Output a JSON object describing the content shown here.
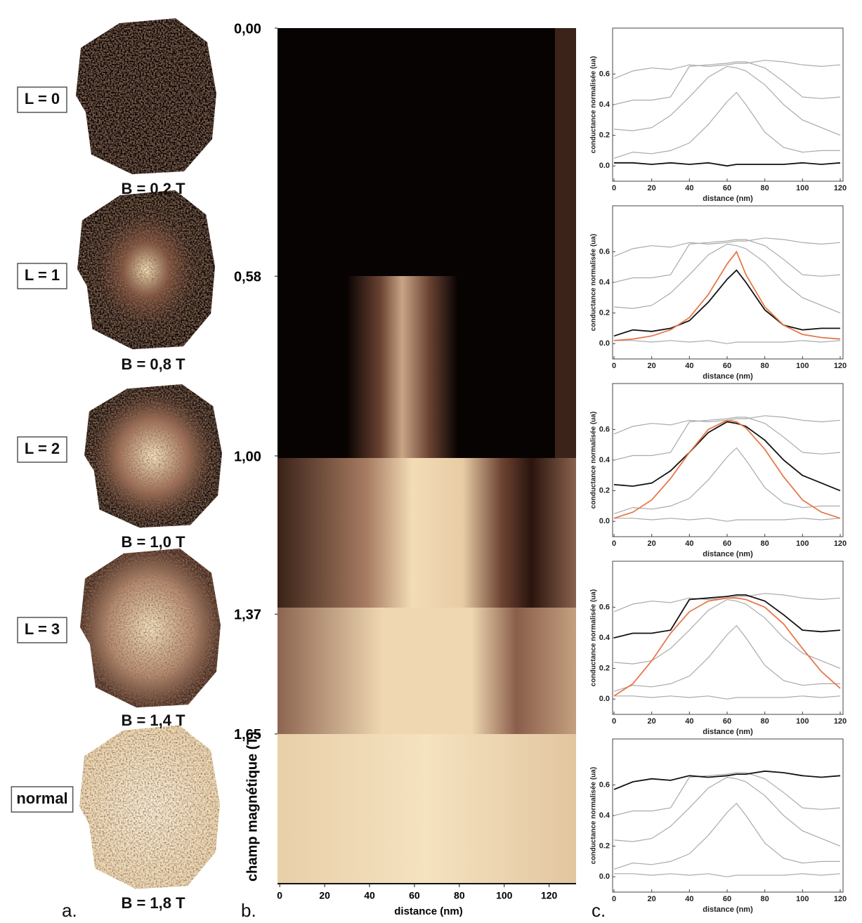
{
  "panel_a": {
    "label": "a.",
    "items": [
      {
        "tag": "L = 0",
        "field": "B = 0,2 T"
      },
      {
        "tag": "L = 1",
        "field": "B = 0,8 T"
      },
      {
        "tag": "L = 2",
        "field": "B = 1,0 T"
      },
      {
        "tag": "L = 3",
        "field": "B = 1,4 T"
      },
      {
        "tag": "normal",
        "field": "B = 1,8 T"
      }
    ]
  },
  "panel_b": {
    "label": "b.",
    "xlabel": "distance (nm)",
    "ylabel": "champ magnétique (T)",
    "xlim": [
      -1,
      132
    ],
    "xticks": [
      0,
      20,
      40,
      60,
      80,
      100,
      120
    ],
    "ylim": [
      0,
      2
    ],
    "yticks": [
      {
        "value": 0,
        "label": "0,00"
      },
      {
        "value": 0.58,
        "label": "0,58"
      },
      {
        "value": 1,
        "label": "1,00"
      },
      {
        "value": 1.37,
        "label": "1,37"
      },
      {
        "value": 1.65,
        "label": "1,65"
      }
    ]
  },
  "panel_c": {
    "label": "c."
  },
  "chart_data": [
    {
      "type": "line",
      "xlabel": "distance (nm)",
      "ylabel": "conductance normalisée (ua)",
      "xlim": [
        0,
        120
      ],
      "xticks": [
        0,
        20,
        40,
        60,
        80,
        100,
        120
      ],
      "ylim": [
        -0.1,
        0.9
      ],
      "yticks": [
        {
          "value": 0,
          "label": "0.0"
        },
        0.2,
        0.4,
        0.6
      ],
      "x": [
        0,
        10,
        20,
        30,
        40,
        50,
        60,
        65,
        70,
        80,
        90,
        100,
        110,
        120
      ],
      "series": [
        {
          "color": "#aaaaaa",
          "values": [
            0.05,
            0.09,
            0.08,
            0.1,
            0.15,
            0.27,
            0.42,
            0.48,
            0.4,
            0.22,
            0.12,
            0.09,
            0.1,
            0.1
          ]
        },
        {
          "color": "#aaaaaa",
          "values": [
            0.24,
            0.23,
            0.25,
            0.33,
            0.45,
            0.58,
            0.65,
            0.64,
            0.62,
            0.53,
            0.4,
            0.3,
            0.25,
            0.2
          ]
        },
        {
          "color": "#aaaaaa",
          "values": [
            0.4,
            0.43,
            0.43,
            0.45,
            0.65,
            0.66,
            0.67,
            0.68,
            0.68,
            0.64,
            0.55,
            0.45,
            0.44,
            0.45
          ]
        },
        {
          "color": "#aaaaaa",
          "values": [
            0.57,
            0.62,
            0.64,
            0.63,
            0.66,
            0.65,
            0.66,
            0.67,
            0.67,
            0.69,
            0.68,
            0.66,
            0.65,
            0.66
          ]
        },
        {
          "color": "#111111",
          "values": [
            0.02,
            0.02,
            0.01,
            0.02,
            0.01,
            0.02,
            0.0,
            0.01,
            0.01,
            0.01,
            0.01,
            0.02,
            0.01,
            0.02
          ]
        }
      ]
    },
    {
      "type": "line",
      "xlabel": "distance (nm)",
      "ylabel": "conductance normalisée (ua)",
      "xlim": [
        0,
        120
      ],
      "xticks": [
        0,
        20,
        40,
        60,
        80,
        100,
        120
      ],
      "ylim": [
        -0.1,
        0.9
      ],
      "yticks": [
        {
          "value": 0,
          "label": "0.0"
        },
        0.2,
        0.4,
        0.6
      ],
      "x": [
        0,
        10,
        20,
        30,
        40,
        50,
        60,
        65,
        70,
        80,
        90,
        100,
        110,
        120
      ],
      "series": [
        {
          "color": "#aaaaaa",
          "values": [
            0.02,
            0.02,
            0.01,
            0.02,
            0.01,
            0.02,
            0.0,
            0.01,
            0.01,
            0.01,
            0.01,
            0.02,
            0.01,
            0.02
          ]
        },
        {
          "color": "#aaaaaa",
          "values": [
            0.24,
            0.23,
            0.25,
            0.33,
            0.45,
            0.58,
            0.65,
            0.64,
            0.62,
            0.53,
            0.4,
            0.3,
            0.25,
            0.2
          ]
        },
        {
          "color": "#aaaaaa",
          "values": [
            0.4,
            0.43,
            0.43,
            0.45,
            0.65,
            0.66,
            0.67,
            0.68,
            0.68,
            0.64,
            0.55,
            0.45,
            0.44,
            0.45
          ]
        },
        {
          "color": "#aaaaaa",
          "values": [
            0.57,
            0.62,
            0.64,
            0.63,
            0.66,
            0.65,
            0.66,
            0.67,
            0.67,
            0.69,
            0.68,
            0.66,
            0.65,
            0.66
          ]
        },
        {
          "color": "#111111",
          "values": [
            0.05,
            0.09,
            0.08,
            0.1,
            0.15,
            0.27,
            0.42,
            0.48,
            0.4,
            0.22,
            0.12,
            0.09,
            0.1,
            0.1
          ]
        },
        {
          "color": "#e8774a",
          "values": [
            0.02,
            0.03,
            0.05,
            0.09,
            0.17,
            0.32,
            0.52,
            0.6,
            0.45,
            0.24,
            0.12,
            0.06,
            0.04,
            0.03
          ]
        }
      ]
    },
    {
      "type": "line",
      "xlabel": "distance (nm)",
      "ylabel": "conductance normalisée (ua)",
      "xlim": [
        0,
        120
      ],
      "xticks": [
        0,
        20,
        40,
        60,
        80,
        100,
        120
      ],
      "ylim": [
        -0.1,
        0.9
      ],
      "yticks": [
        {
          "value": 0,
          "label": "0.0"
        },
        0.2,
        0.4,
        0.6
      ],
      "x": [
        0,
        10,
        20,
        30,
        40,
        50,
        60,
        65,
        70,
        80,
        90,
        100,
        110,
        120
      ],
      "series": [
        {
          "color": "#aaaaaa",
          "values": [
            0.02,
            0.02,
            0.01,
            0.02,
            0.01,
            0.02,
            0.0,
            0.01,
            0.01,
            0.01,
            0.01,
            0.02,
            0.01,
            0.02
          ]
        },
        {
          "color": "#aaaaaa",
          "values": [
            0.05,
            0.09,
            0.08,
            0.1,
            0.15,
            0.27,
            0.42,
            0.48,
            0.4,
            0.22,
            0.12,
            0.09,
            0.1,
            0.1
          ]
        },
        {
          "color": "#aaaaaa",
          "values": [
            0.4,
            0.43,
            0.43,
            0.45,
            0.65,
            0.66,
            0.67,
            0.68,
            0.68,
            0.64,
            0.55,
            0.45,
            0.44,
            0.45
          ]
        },
        {
          "color": "#aaaaaa",
          "values": [
            0.57,
            0.62,
            0.64,
            0.63,
            0.66,
            0.65,
            0.66,
            0.67,
            0.67,
            0.69,
            0.68,
            0.66,
            0.65,
            0.66
          ]
        },
        {
          "color": "#111111",
          "values": [
            0.24,
            0.23,
            0.25,
            0.33,
            0.45,
            0.58,
            0.65,
            0.64,
            0.62,
            0.53,
            0.4,
            0.3,
            0.25,
            0.2
          ]
        },
        {
          "color": "#e8774a",
          "values": [
            0.02,
            0.06,
            0.14,
            0.28,
            0.45,
            0.6,
            0.66,
            0.65,
            0.61,
            0.47,
            0.29,
            0.14,
            0.06,
            0.02
          ]
        }
      ]
    },
    {
      "type": "line",
      "xlabel": "distance (nm)",
      "ylabel": "conductance normalisée (ua)",
      "xlim": [
        0,
        120
      ],
      "xticks": [
        0,
        20,
        40,
        60,
        80,
        100,
        120
      ],
      "ylim": [
        -0.1,
        0.9
      ],
      "yticks": [
        {
          "value": 0,
          "label": "0.0"
        },
        0.2,
        0.4,
        0.6
      ],
      "x": [
        0,
        10,
        20,
        30,
        40,
        50,
        60,
        65,
        70,
        80,
        90,
        100,
        110,
        120
      ],
      "series": [
        {
          "color": "#aaaaaa",
          "values": [
            0.02,
            0.02,
            0.01,
            0.02,
            0.01,
            0.02,
            0.0,
            0.01,
            0.01,
            0.01,
            0.01,
            0.02,
            0.01,
            0.02
          ]
        },
        {
          "color": "#aaaaaa",
          "values": [
            0.05,
            0.09,
            0.08,
            0.1,
            0.15,
            0.27,
            0.42,
            0.48,
            0.4,
            0.22,
            0.12,
            0.09,
            0.1,
            0.1
          ]
        },
        {
          "color": "#aaaaaa",
          "values": [
            0.24,
            0.23,
            0.25,
            0.33,
            0.45,
            0.58,
            0.65,
            0.64,
            0.62,
            0.53,
            0.4,
            0.3,
            0.25,
            0.2
          ]
        },
        {
          "color": "#aaaaaa",
          "values": [
            0.57,
            0.62,
            0.64,
            0.63,
            0.66,
            0.65,
            0.66,
            0.67,
            0.67,
            0.69,
            0.68,
            0.66,
            0.65,
            0.66
          ]
        },
        {
          "color": "#111111",
          "values": [
            0.4,
            0.43,
            0.43,
            0.45,
            0.65,
            0.66,
            0.67,
            0.68,
            0.68,
            0.64,
            0.55,
            0.45,
            0.44,
            0.45
          ]
        },
        {
          "color": "#e8774a",
          "values": [
            0.02,
            0.1,
            0.25,
            0.43,
            0.57,
            0.64,
            0.66,
            0.66,
            0.65,
            0.6,
            0.49,
            0.33,
            0.18,
            0.07
          ]
        }
      ]
    },
    {
      "type": "line",
      "xlabel": "distance (nm)",
      "ylabel": "conductance normalisée (ua)",
      "xlim": [
        0,
        120
      ],
      "xticks": [
        0,
        20,
        40,
        60,
        80,
        100,
        120
      ],
      "ylim": [
        -0.1,
        0.9
      ],
      "yticks": [
        {
          "value": 0,
          "label": "0.0"
        },
        0.2,
        0.4,
        0.6
      ],
      "x": [
        0,
        10,
        20,
        30,
        40,
        50,
        60,
        65,
        70,
        80,
        90,
        100,
        110,
        120
      ],
      "series": [
        {
          "color": "#aaaaaa",
          "values": [
            0.02,
            0.02,
            0.01,
            0.02,
            0.01,
            0.02,
            0.0,
            0.01,
            0.01,
            0.01,
            0.01,
            0.02,
            0.01,
            0.02
          ]
        },
        {
          "color": "#aaaaaa",
          "values": [
            0.05,
            0.09,
            0.08,
            0.1,
            0.15,
            0.27,
            0.42,
            0.48,
            0.4,
            0.22,
            0.12,
            0.09,
            0.1,
            0.1
          ]
        },
        {
          "color": "#aaaaaa",
          "values": [
            0.24,
            0.23,
            0.25,
            0.33,
            0.45,
            0.58,
            0.65,
            0.64,
            0.62,
            0.53,
            0.4,
            0.3,
            0.25,
            0.2
          ]
        },
        {
          "color": "#aaaaaa",
          "values": [
            0.4,
            0.43,
            0.43,
            0.45,
            0.65,
            0.66,
            0.67,
            0.68,
            0.68,
            0.64,
            0.55,
            0.45,
            0.44,
            0.45
          ]
        },
        {
          "color": "#111111",
          "values": [
            0.57,
            0.62,
            0.64,
            0.63,
            0.66,
            0.65,
            0.66,
            0.67,
            0.67,
            0.69,
            0.68,
            0.66,
            0.65,
            0.66
          ]
        }
      ]
    }
  ]
}
